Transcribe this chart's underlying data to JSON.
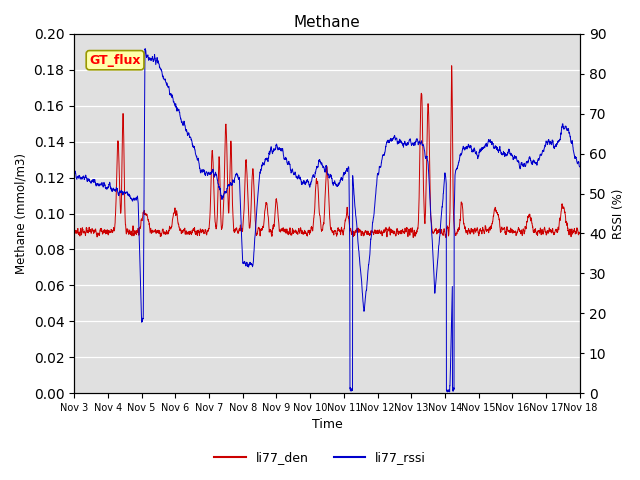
{
  "title": "Methane",
  "xlabel": "Time",
  "ylabel_left": "Methane (mmol/m3)",
  "ylabel_right": "RSSI (%)",
  "ylim_left": [
    0.0,
    0.2
  ],
  "ylim_right": [
    0,
    90
  ],
  "yticks_left": [
    0.0,
    0.02,
    0.04,
    0.06,
    0.08,
    0.1,
    0.12,
    0.14,
    0.16,
    0.18,
    0.2
  ],
  "yticks_right": [
    0,
    10,
    20,
    30,
    40,
    50,
    60,
    70,
    80,
    90
  ],
  "xtick_labels": [
    "Nov 3",
    "Nov 4",
    "Nov 5",
    "Nov 6",
    "Nov 7",
    "Nov 8",
    "Nov 9",
    "Nov 10",
    "Nov 11",
    "Nov 12",
    "Nov 13",
    "Nov 14",
    "Nov 15",
    "Nov 16",
    "Nov 17",
    "Nov 18"
  ],
  "line1_color": "#cc0000",
  "line2_color": "#0000cc",
  "line1_label": "li77_den",
  "line2_label": "li77_rssi",
  "bg_color": "#e0e0e0",
  "annotation_text": "GT_flux",
  "annotation_bg": "#ffffaa",
  "annotation_border": "#999900"
}
